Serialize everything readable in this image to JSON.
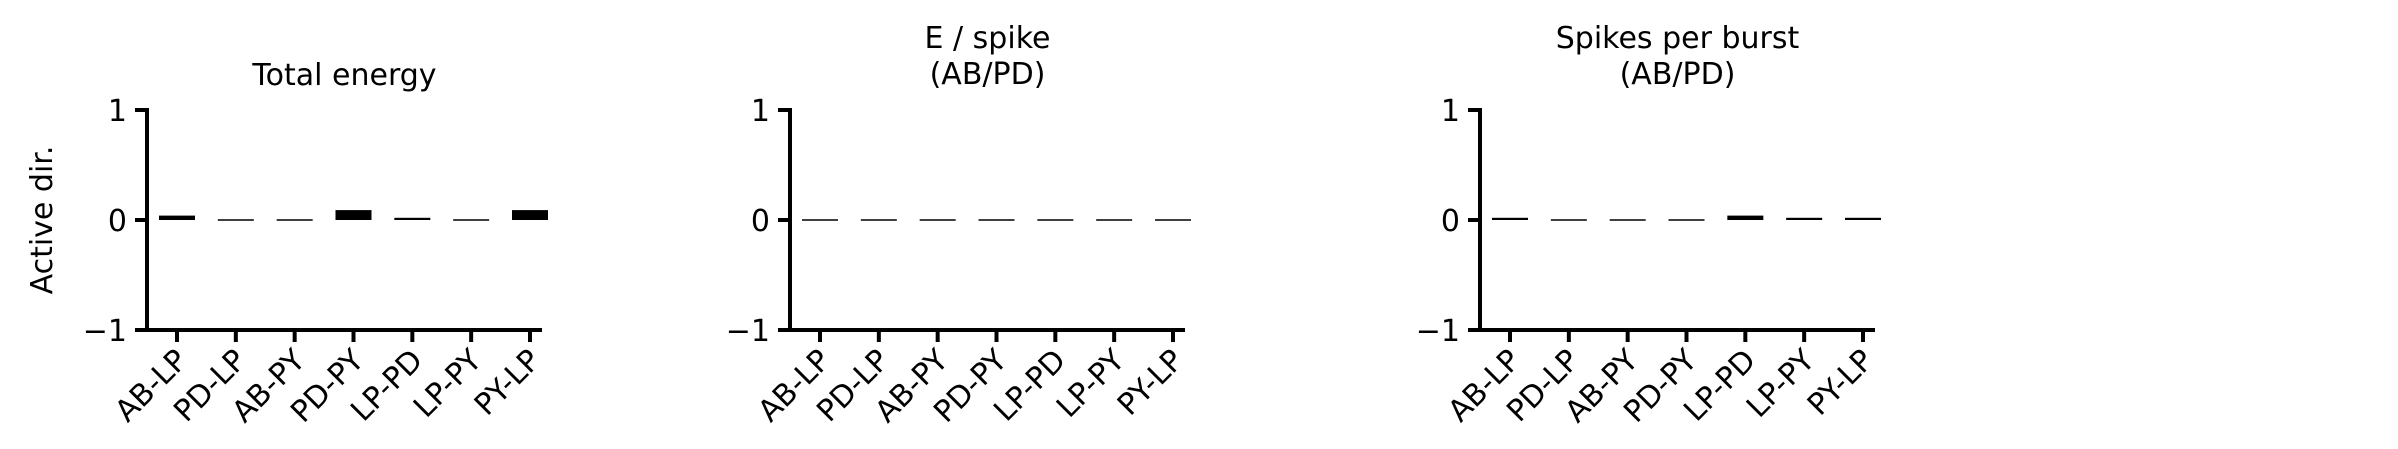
{
  "figure": {
    "ylabel": "Active dir."
  },
  "chart_data": [
    {
      "type": "bar",
      "title": "Total energy",
      "xlabel": "",
      "ylabel": "Active dir.",
      "categories": [
        "AB-LP",
        "PD-LP",
        "AB-PY",
        "PD-PY",
        "LP-PD",
        "LP-PY",
        "PY-LP"
      ],
      "values": [
        0.04,
        -0.01,
        -0.01,
        0.09,
        0.02,
        -0.01,
        0.09
      ],
      "ylim": [
        -1,
        1
      ],
      "yticks": [
        "1",
        "0",
        "−1"
      ],
      "grid": false,
      "color": "#000000"
    },
    {
      "type": "bar",
      "title": "E / spike\n(AB/PD)",
      "xlabel": "",
      "ylabel": "",
      "categories": [
        "AB-LP",
        "PD-LP",
        "AB-PY",
        "PD-PY",
        "LP-PD",
        "LP-PY",
        "PY-LP"
      ],
      "values": [
        0.0,
        0.0,
        0.0,
        0.0,
        0.0,
        0.0,
        0.0
      ],
      "ylim": [
        -1,
        1
      ],
      "yticks": [
        "1",
        "0",
        "−1"
      ],
      "grid": false,
      "color": "#000000"
    },
    {
      "type": "bar",
      "title": "Spikes per burst\n(AB/PD)",
      "xlabel": "",
      "ylabel": "",
      "categories": [
        "AB-LP",
        "PD-LP",
        "AB-PY",
        "PD-PY",
        "LP-PD",
        "LP-PY",
        "PY-LP"
      ],
      "values": [
        0.02,
        -0.01,
        -0.01,
        -0.01,
        0.04,
        0.02,
        0.02
      ],
      "ylim": [
        -1,
        1
      ],
      "yticks": [
        "1",
        "0",
        "−1"
      ],
      "grid": false,
      "color": "#000000"
    }
  ]
}
